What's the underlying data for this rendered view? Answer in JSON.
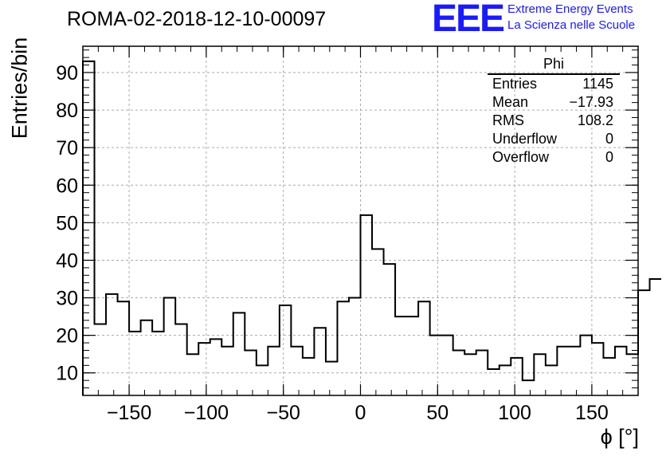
{
  "header": {
    "title": "ROMA-02-2018-12-10-00097",
    "logo": "EEE",
    "logo_line1": "Extreme Energy Events",
    "logo_line2": "La Scienza nelle Scuole"
  },
  "stats_box": {
    "name": "Phi",
    "rows": [
      {
        "label": "Entries",
        "value": "1145"
      },
      {
        "label": "Mean",
        "value": "−17.93"
      },
      {
        "label": "RMS",
        "value": "108.2"
      },
      {
        "label": "Underflow",
        "value": "0"
      },
      {
        "label": "Overflow",
        "value": "0"
      }
    ]
  },
  "chart_data": {
    "type": "histogram",
    "title": "ROMA-02-2018-12-10-00097",
    "xlabel": "ϕ [°]",
    "ylabel": "Entries/bin",
    "xlim": [
      -180,
      180
    ],
    "ylim": [
      4,
      97
    ],
    "grid": true,
    "x_ticks": [
      -150,
      -100,
      -50,
      0,
      50,
      100,
      150
    ],
    "x_tick_labels": [
      "−150",
      "−100",
      "−50",
      "0",
      "50",
      "100",
      "150"
    ],
    "y_ticks": [
      10,
      20,
      30,
      40,
      50,
      60,
      70,
      80,
      90
    ],
    "bin_edges_start": -180,
    "bin_width": 7.5,
    "values": [
      93,
      23,
      31,
      29,
      21,
      24,
      21,
      30,
      23,
      15,
      18,
      19,
      17,
      26,
      16,
      12,
      17,
      28,
      17,
      14,
      22,
      13,
      29,
      30,
      52,
      43,
      39,
      25,
      25,
      29,
      20,
      20,
      16,
      15,
      16,
      11,
      12,
      14,
      8,
      15,
      12,
      17,
      17,
      20,
      18,
      14,
      17,
      15,
      32,
      35
    ],
    "line_color": "#000000"
  }
}
